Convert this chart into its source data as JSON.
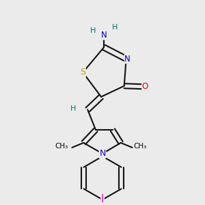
{
  "bg_color": "#ebebeb",
  "atom_colors": {
    "S": "#b8a000",
    "N_thia": "#0000cc",
    "N_pyr": "#2200cc",
    "O": "#dd0000",
    "I": "#ee00cc",
    "H": "#007070",
    "C": "#000000"
  },
  "bond_color": "#111111",
  "bond_width": 1.5,
  "figsize": [
    3.0,
    3.0
  ],
  "dpi": 100,
  "xlim": [
    0,
    300
  ],
  "ylim": [
    0,
    300
  ]
}
